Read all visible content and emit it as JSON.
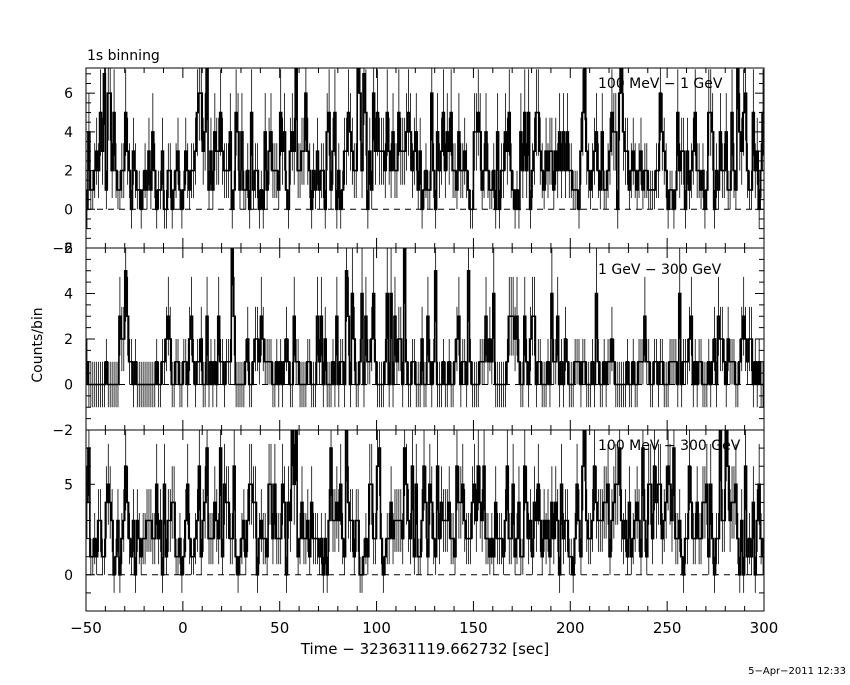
{
  "chart_data": {
    "type": "line",
    "title": "1s binning",
    "xlabel": "Time − 323631119.662732 [sec]",
    "ylabel": "Counts/bin",
    "timestamp": "5−Apr−2011 12:33",
    "x_range": [
      -50,
      300
    ],
    "x_ticks": [
      -50,
      0,
      50,
      100,
      150,
      200,
      250,
      300
    ],
    "x_tick_labels": [
      "−50",
      "0",
      "50",
      "100",
      "150",
      "200",
      "250",
      "300"
    ],
    "dashed_zero_line": true,
    "panels": [
      {
        "label": "100 MeV − 1 GeV",
        "y_range": [
          -2,
          7.3
        ],
        "y_ticks": [
          -2,
          0,
          2,
          4,
          6
        ],
        "y_tick_labels": [
          "−2",
          "0",
          "2",
          "4",
          "6"
        ],
        "baseline": 1.4,
        "burst_times": [
          -50,
          -42,
          -38,
          -30,
          -18,
          -5,
          5,
          8,
          12,
          20,
          27,
          32,
          45,
          52,
          58,
          60,
          65,
          78,
          82,
          86,
          90,
          100,
          105,
          111,
          116,
          121,
          127,
          135,
          141,
          145,
          152,
          158,
          165,
          173,
          177,
          185,
          190,
          196,
          205,
          207,
          212,
          220,
          223,
          225,
          232,
          245,
          251,
          260,
          266,
          272,
          278,
          285,
          289,
          296
        ],
        "peaks": [
          {
            "x": 12,
            "y": 7.3
          },
          {
            "x": 58,
            "y": 7.3
          },
          {
            "x": 207,
            "y": 7.3
          },
          {
            "x": -38,
            "y": 6
          },
          {
            "x": 225,
            "y": 6
          },
          {
            "x": 290,
            "y": 6
          },
          {
            "x": 8,
            "y": 6
          },
          {
            "x": 85,
            "y": 5
          },
          {
            "x": 111,
            "y": 5
          },
          {
            "x": -30,
            "y": 5
          },
          {
            "x": 35,
            "y": 5
          },
          {
            "x": 152,
            "y": 5
          },
          {
            "x": 176,
            "y": 5
          },
          {
            "x": 255,
            "y": 5
          }
        ]
      },
      {
        "label": "1 GeV − 300 GeV",
        "y_range": [
          -2,
          6
        ],
        "y_ticks": [
          -2,
          0,
          2,
          4,
          6
        ],
        "y_tick_labels": [
          "−2",
          "0",
          "2",
          "4",
          "6"
        ],
        "baseline": 0.35,
        "burst_times": [
          -50,
          -30,
          -8,
          5,
          22,
          40,
          57,
          70,
          84,
          95,
          108,
          115,
          128,
          143,
          157,
          170,
          180,
          192,
          204,
          220,
          240,
          260,
          276,
          290
        ],
        "peaks": [
          {
            "x": 114,
            "y": 6
          },
          {
            "x": -30,
            "y": 5
          },
          {
            "x": 84,
            "y": 5
          },
          {
            "x": 130,
            "y": 5
          },
          {
            "x": 147,
            "y": 5
          },
          {
            "x": 98,
            "y": 4
          },
          {
            "x": 105,
            "y": 4
          },
          {
            "x": 160,
            "y": 4
          },
          {
            "x": 190,
            "y": 4
          },
          {
            "x": 213,
            "y": 4
          },
          {
            "x": 256,
            "y": 4
          },
          {
            "x": 12,
            "y": 3
          },
          {
            "x": 18,
            "y": 3
          },
          {
            "x": 26,
            "y": 3
          },
          {
            "x": 40,
            "y": 3
          },
          {
            "x": 57,
            "y": 3
          },
          {
            "x": 79,
            "y": 3
          },
          {
            "x": 168,
            "y": 3
          },
          {
            "x": 238,
            "y": 3
          },
          {
            "x": 276,
            "y": 3
          },
          {
            "x": 289,
            "y": 3
          }
        ]
      },
      {
        "label": "100 MeV − 300 GeV",
        "y_range": [
          -2,
          8
        ],
        "y_ticks": [
          0,
          5
        ],
        "y_tick_labels": [
          "0",
          "5"
        ],
        "baseline": 2.0,
        "burst_times": [
          -50,
          -38,
          -28,
          -10,
          5,
          12,
          20,
          32,
          45,
          52,
          58,
          65,
          78,
          84,
          90,
          100,
          110,
          116,
          121,
          127,
          135,
          141,
          152,
          160,
          168,
          180,
          190,
          196,
          205,
          207,
          212,
          220,
          225,
          235,
          245,
          251,
          262,
          272,
          281,
          289,
          296
        ],
        "peaks": [
          {
            "x": 58,
            "y": 8
          },
          {
            "x": 84,
            "y": 8
          },
          {
            "x": 207,
            "y": 8
          },
          {
            "x": 114,
            "y": 7
          },
          {
            "x": 225,
            "y": 7
          },
          {
            "x": 12,
            "y": 7
          },
          {
            "x": 8,
            "y": 6
          },
          {
            "x": 100,
            "y": 6
          },
          {
            "x": 131,
            "y": 6
          },
          {
            "x": -30,
            "y": 6
          },
          {
            "x": 176,
            "y": 6
          },
          {
            "x": 290,
            "y": 6
          },
          {
            "x": 250,
            "y": 6
          },
          {
            "x": 155,
            "y": 6
          },
          {
            "x": 240,
            "y": 5
          },
          {
            "x": 270,
            "y": 5
          },
          {
            "x": 35,
            "y": 5
          }
        ]
      }
    ]
  }
}
